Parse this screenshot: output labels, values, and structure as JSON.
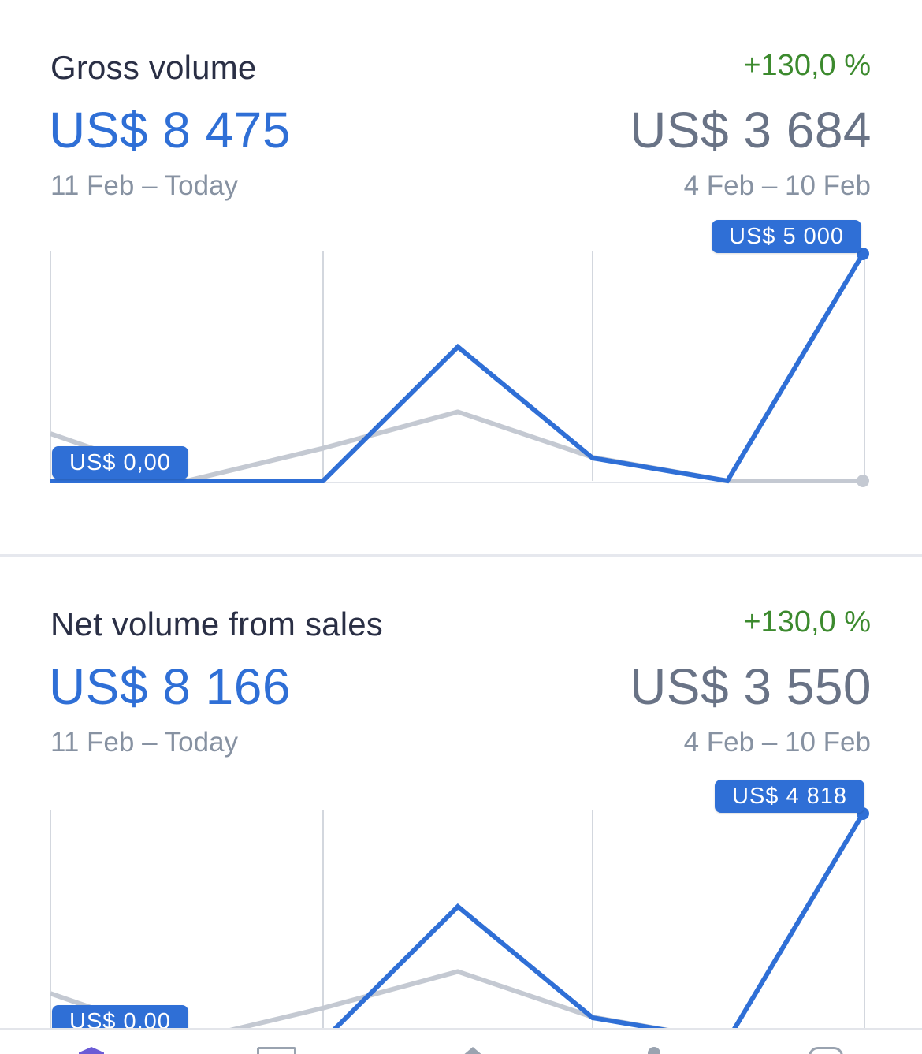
{
  "cards": [
    {
      "title": "Gross volume",
      "change": "+130,0 %",
      "current_value": "US$ 8 475",
      "current_range": "11 Feb – Today",
      "previous_value": "US$ 3 684",
      "previous_range": "4 Feb – 10 Feb",
      "max_label": "US$ 5 000",
      "min_label": "US$ 0,00"
    },
    {
      "title": "Net volume from sales",
      "change": "+130,0 %",
      "current_value": "US$ 8 166",
      "current_range": "11 Feb – Today",
      "previous_value": "US$ 3 550",
      "previous_range": "4 Feb – 10 Feb",
      "max_label": "US$ 4 818",
      "min_label": "US$ 0,00"
    }
  ],
  "colors": {
    "current_series": "#2f6fd6",
    "previous_series": "#c4c9d2",
    "positive_change": "#3c8a2e",
    "grid": "#d3d7de"
  },
  "chart_data": [
    {
      "type": "line",
      "x": [
        0,
        1,
        2,
        3,
        4,
        5,
        6
      ],
      "ylim": [
        0,
        5000
      ],
      "series": [
        {
          "values": [
            0,
            0,
            0,
            2952,
            503,
            0,
            5000
          ]
        },
        {
          "values": [
            1040,
            0,
            720,
            1520,
            520,
            0,
            0
          ]
        }
      ]
    },
    {
      "type": "line",
      "x": [
        0,
        1,
        2,
        3,
        4,
        5,
        6
      ],
      "ylim": [
        0,
        4818
      ],
      "series": [
        {
          "values": [
            0,
            0,
            0,
            2845,
            485,
            0,
            4818
          ]
        },
        {
          "values": [
            1000,
            0,
            690,
            1465,
            500,
            0,
            0
          ]
        }
      ]
    }
  ],
  "tabbar": {
    "items": [
      "home-icon",
      "payments-icon",
      "balances-icon",
      "customers-icon",
      "more-icon"
    ]
  }
}
